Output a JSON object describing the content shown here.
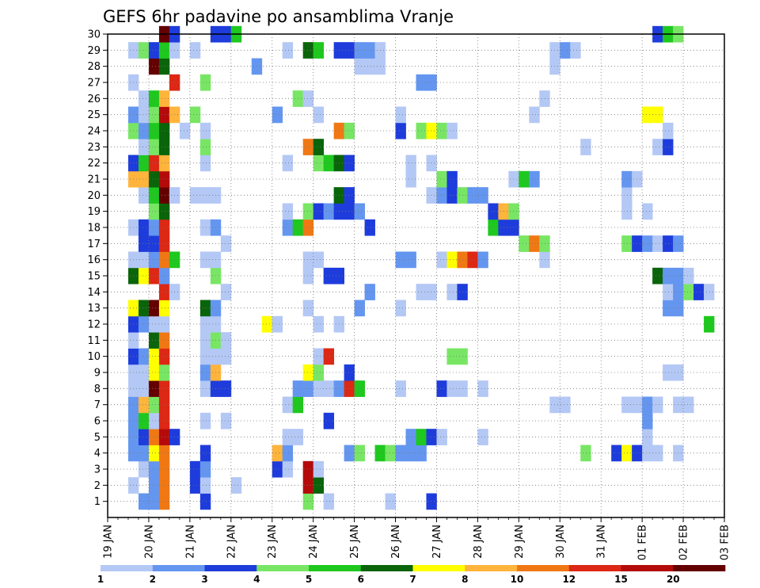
{
  "chart_data": {
    "type": "heatmap",
    "title": "GEFS 6hr padavine po ansamblima Vranje",
    "xlabel": "",
    "ylabel": "",
    "x_ticks": [
      "19 JAN",
      "20 JAN",
      "21 JAN",
      "22 JAN",
      "23 JAN",
      "24 JAN",
      "25 JAN",
      "26 JAN",
      "27 JAN",
      "28 JAN",
      "29 JAN",
      "30 JAN",
      "31 JAN",
      "01 FEB",
      "02 FEB",
      "03 FEB"
    ],
    "xlim": [
      "19 JAN 00Z",
      "03 FEB 00Z"
    ],
    "x_step_hours": 6,
    "y_ticks": [
      1,
      2,
      3,
      4,
      5,
      6,
      7,
      8,
      9,
      10,
      11,
      12,
      13,
      14,
      15,
      16,
      17,
      18,
      19,
      20,
      21,
      22,
      23,
      24,
      25,
      26,
      27,
      28,
      29,
      30
    ],
    "ylim": [
      0,
      30
    ],
    "grid": true,
    "colorbar": {
      "position": "bottom",
      "levels": [
        1,
        2,
        3,
        4,
        5,
        6,
        7,
        8,
        10,
        12,
        15,
        20
      ],
      "level_labels": [
        "1",
        "2",
        "3",
        "4",
        "5",
        "6",
        "7",
        "8",
        "10",
        "12",
        "15",
        "20"
      ],
      "colors": [
        "#b4c8f5",
        "#6496f0",
        "#1e3cdc",
        "#78e664",
        "#1ec81e",
        "#0a640a",
        "#ffff00",
        "#ffb43c",
        "#f07814",
        "#dc2814",
        "#b40a0a",
        "#640000"
      ]
    },
    "units": "mm",
    "cells_note": "rows: member -> list of [timestep_index, class_index]; timestep 0 = 19 JAN 00Z, 4 per day; class index k means value in [levels[k], levels[k+1])",
    "cells": {
      "30": [
        [
          5,
          11
        ],
        [
          6,
          2
        ],
        [
          10,
          2
        ],
        [
          11,
          2
        ],
        [
          12,
          4
        ],
        [
          53,
          2
        ],
        [
          54,
          4
        ],
        [
          55,
          3
        ]
      ],
      "29": [
        [
          2,
          0
        ],
        [
          3,
          3
        ],
        [
          4,
          2
        ],
        [
          5,
          4
        ],
        [
          6,
          0
        ],
        [
          8,
          0
        ],
        [
          17,
          0
        ],
        [
          19,
          5
        ],
        [
          20,
          4
        ],
        [
          22,
          2
        ],
        [
          23,
          2
        ],
        [
          24,
          1
        ],
        [
          25,
          1
        ],
        [
          26,
          0
        ],
        [
          43,
          0
        ],
        [
          44,
          1
        ],
        [
          45,
          0
        ]
      ],
      "28": [
        [
          4,
          11
        ],
        [
          5,
          5
        ],
        [
          14,
          1
        ],
        [
          24,
          0
        ],
        [
          25,
          0
        ],
        [
          26,
          0
        ],
        [
          43,
          0
        ]
      ],
      "27": [
        [
          2,
          0
        ],
        [
          6,
          9
        ],
        [
          9,
          3
        ],
        [
          30,
          1
        ],
        [
          31,
          1
        ]
      ],
      "26": [
        [
          3,
          0
        ],
        [
          4,
          4
        ],
        [
          5,
          7
        ],
        [
          18,
          3
        ],
        [
          19,
          0
        ],
        [
          42,
          0
        ]
      ],
      "25": [
        [
          2,
          1
        ],
        [
          3,
          0
        ],
        [
          4,
          3
        ],
        [
          5,
          10
        ],
        [
          6,
          7
        ],
        [
          8,
          3
        ],
        [
          16,
          1
        ],
        [
          20,
          0
        ],
        [
          28,
          0
        ],
        [
          41,
          0
        ],
        [
          52,
          6
        ],
        [
          53,
          6
        ]
      ],
      "24": [
        [
          2,
          3
        ],
        [
          3,
          1
        ],
        [
          4,
          4
        ],
        [
          5,
          5
        ],
        [
          7,
          0
        ],
        [
          9,
          0
        ],
        [
          22,
          8
        ],
        [
          23,
          3
        ],
        [
          28,
          2
        ],
        [
          30,
          3
        ],
        [
          31,
          6
        ],
        [
          32,
          3
        ],
        [
          33,
          0
        ],
        [
          54,
          0
        ]
      ],
      "23": [
        [
          3,
          0
        ],
        [
          4,
          3
        ],
        [
          5,
          5
        ],
        [
          9,
          3
        ],
        [
          19,
          8
        ],
        [
          20,
          5
        ],
        [
          46,
          0
        ],
        [
          53,
          0
        ],
        [
          54,
          2
        ]
      ],
      "22": [
        [
          2,
          2
        ],
        [
          3,
          4
        ],
        [
          4,
          9
        ],
        [
          5,
          7
        ],
        [
          9,
          0
        ],
        [
          17,
          0
        ],
        [
          20,
          3
        ],
        [
          21,
          4
        ],
        [
          22,
          5
        ],
        [
          23,
          2
        ],
        [
          29,
          0
        ],
        [
          31,
          0
        ]
      ],
      "21": [
        [
          2,
          7
        ],
        [
          3,
          7
        ],
        [
          4,
          5
        ],
        [
          5,
          10
        ],
        [
          29,
          0
        ],
        [
          32,
          3
        ],
        [
          33,
          2
        ],
        [
          39,
          0
        ],
        [
          40,
          4
        ],
        [
          41,
          1
        ],
        [
          50,
          1
        ],
        [
          51,
          0
        ]
      ],
      "20": [
        [
          3,
          0
        ],
        [
          4,
          4
        ],
        [
          5,
          11
        ],
        [
          6,
          0
        ],
        [
          8,
          0
        ],
        [
          9,
          0
        ],
        [
          10,
          0
        ],
        [
          22,
          5
        ],
        [
          23,
          2
        ],
        [
          31,
          0
        ],
        [
          32,
          1
        ],
        [
          33,
          2
        ],
        [
          34,
          3
        ],
        [
          35,
          1
        ],
        [
          36,
          1
        ],
        [
          50,
          0
        ]
      ],
      "19": [
        [
          4,
          3
        ],
        [
          5,
          5
        ],
        [
          17,
          0
        ],
        [
          19,
          3
        ],
        [
          20,
          2
        ],
        [
          21,
          1
        ],
        [
          22,
          2
        ],
        [
          23,
          2
        ],
        [
          24,
          1
        ],
        [
          37,
          2
        ],
        [
          38,
          7
        ],
        [
          39,
          3
        ],
        [
          50,
          0
        ],
        [
          52,
          0
        ]
      ],
      "18": [
        [
          2,
          0
        ],
        [
          3,
          2
        ],
        [
          4,
          1
        ],
        [
          5,
          9
        ],
        [
          9,
          0
        ],
        [
          10,
          1
        ],
        [
          17,
          1
        ],
        [
          18,
          4
        ],
        [
          19,
          8
        ],
        [
          25,
          2
        ],
        [
          37,
          4
        ],
        [
          38,
          2
        ],
        [
          39,
          2
        ]
      ],
      "17": [
        [
          3,
          2
        ],
        [
          4,
          2
        ],
        [
          5,
          9
        ],
        [
          11,
          0
        ],
        [
          40,
          3
        ],
        [
          41,
          8
        ],
        [
          42,
          3
        ],
        [
          50,
          3
        ],
        [
          51,
          2
        ],
        [
          52,
          1
        ],
        [
          53,
          0
        ],
        [
          54,
          2
        ],
        [
          55,
          1
        ]
      ],
      "16": [
        [
          2,
          0
        ],
        [
          3,
          0
        ],
        [
          4,
          1
        ],
        [
          5,
          8
        ],
        [
          6,
          4
        ],
        [
          9,
          0
        ],
        [
          10,
          0
        ],
        [
          19,
          0
        ],
        [
          20,
          0
        ],
        [
          28,
          1
        ],
        [
          29,
          1
        ],
        [
          32,
          0
        ],
        [
          33,
          6
        ],
        [
          34,
          8
        ],
        [
          35,
          9
        ],
        [
          36,
          1
        ],
        [
          42,
          0
        ]
      ],
      "15": [
        [
          2,
          5
        ],
        [
          3,
          6
        ],
        [
          4,
          9
        ],
        [
          5,
          1
        ],
        [
          10,
          3
        ],
        [
          19,
          0
        ],
        [
          21,
          2
        ],
        [
          22,
          2
        ],
        [
          53,
          5
        ],
        [
          54,
          1
        ],
        [
          55,
          1
        ],
        [
          56,
          0
        ]
      ],
      "14": [
        [
          5,
          9
        ],
        [
          6,
          0
        ],
        [
          11,
          0
        ],
        [
          25,
          1
        ],
        [
          30,
          0
        ],
        [
          31,
          0
        ],
        [
          33,
          0
        ],
        [
          34,
          2
        ],
        [
          54,
          0
        ],
        [
          55,
          1
        ],
        [
          56,
          3
        ],
        [
          57,
          2
        ],
        [
          58,
          0
        ]
      ],
      "13": [
        [
          2,
          6
        ],
        [
          3,
          5
        ],
        [
          4,
          11
        ],
        [
          5,
          6
        ],
        [
          9,
          5
        ],
        [
          10,
          1
        ],
        [
          19,
          0
        ],
        [
          24,
          1
        ],
        [
          28,
          0
        ],
        [
          54,
          1
        ],
        [
          55,
          1
        ]
      ],
      "12": [
        [
          2,
          2
        ],
        [
          3,
          1
        ],
        [
          4,
          0
        ],
        [
          5,
          0
        ],
        [
          9,
          0
        ],
        [
          10,
          0
        ],
        [
          15,
          6
        ],
        [
          16,
          0
        ],
        [
          20,
          0
        ],
        [
          22,
          0
        ],
        [
          58,
          4
        ]
      ],
      "11": [
        [
          2,
          0
        ],
        [
          4,
          5
        ],
        [
          5,
          8
        ],
        [
          9,
          0
        ],
        [
          10,
          3
        ],
        [
          11,
          0
        ]
      ],
      "10": [
        [
          2,
          2
        ],
        [
          3,
          1
        ],
        [
          4,
          6
        ],
        [
          5,
          9
        ],
        [
          9,
          0
        ],
        [
          10,
          0
        ],
        [
          11,
          0
        ],
        [
          20,
          0
        ],
        [
          21,
          9
        ],
        [
          33,
          3
        ],
        [
          34,
          3
        ]
      ],
      "9": [
        [
          2,
          0
        ],
        [
          3,
          0
        ],
        [
          4,
          6
        ],
        [
          5,
          3
        ],
        [
          9,
          1
        ],
        [
          10,
          7
        ],
        [
          19,
          6
        ],
        [
          20,
          3
        ],
        [
          23,
          2
        ],
        [
          54,
          0
        ],
        [
          55,
          0
        ]
      ],
      "8": [
        [
          2,
          0
        ],
        [
          3,
          0
        ],
        [
          4,
          11
        ],
        [
          5,
          9
        ],
        [
          9,
          0
        ],
        [
          10,
          2
        ],
        [
          11,
          2
        ],
        [
          18,
          1
        ],
        [
          19,
          1
        ],
        [
          20,
          0
        ],
        [
          21,
          0
        ],
        [
          22,
          1
        ],
        [
          23,
          9
        ],
        [
          24,
          4
        ],
        [
          28,
          0
        ],
        [
          32,
          2
        ],
        [
          33,
          0
        ],
        [
          34,
          0
        ],
        [
          36,
          0
        ]
      ],
      "7": [
        [
          2,
          1
        ],
        [
          3,
          7
        ],
        [
          4,
          3
        ],
        [
          5,
          9
        ],
        [
          17,
          0
        ],
        [
          18,
          4
        ],
        [
          43,
          0
        ],
        [
          44,
          0
        ],
        [
          50,
          0
        ],
        [
          51,
          0
        ],
        [
          52,
          1
        ],
        [
          53,
          0
        ],
        [
          55,
          0
        ],
        [
          56,
          0
        ]
      ],
      "6": [
        [
          2,
          1
        ],
        [
          3,
          4
        ],
        [
          4,
          0
        ],
        [
          5,
          9
        ],
        [
          9,
          0
        ],
        [
          11,
          0
        ],
        [
          21,
          2
        ],
        [
          52,
          1
        ]
      ],
      "5": [
        [
          2,
          1
        ],
        [
          3,
          2
        ],
        [
          4,
          8
        ],
        [
          5,
          10
        ],
        [
          6,
          2
        ],
        [
          17,
          0
        ],
        [
          18,
          0
        ],
        [
          29,
          1
        ],
        [
          30,
          4
        ],
        [
          31,
          2
        ],
        [
          32,
          0
        ],
        [
          36,
          0
        ],
        [
          52,
          0
        ]
      ],
      "4": [
        [
          2,
          1
        ],
        [
          3,
          1
        ],
        [
          4,
          6
        ],
        [
          5,
          8
        ],
        [
          9,
          2
        ],
        [
          16,
          7
        ],
        [
          17,
          1
        ],
        [
          23,
          1
        ],
        [
          24,
          3
        ],
        [
          26,
          4
        ],
        [
          27,
          3
        ],
        [
          28,
          1
        ],
        [
          29,
          1
        ],
        [
          30,
          1
        ],
        [
          46,
          3
        ],
        [
          49,
          2
        ],
        [
          50,
          6
        ],
        [
          51,
          2
        ],
        [
          52,
          0
        ],
        [
          53,
          0
        ],
        [
          55,
          0
        ]
      ],
      "3": [
        [
          3,
          0
        ],
        [
          4,
          1
        ],
        [
          5,
          8
        ],
        [
          8,
          2
        ],
        [
          9,
          1
        ],
        [
          16,
          2
        ],
        [
          17,
          0
        ],
        [
          19,
          10
        ],
        [
          20,
          0
        ]
      ],
      "2": [
        [
          2,
          0
        ],
        [
          4,
          1
        ],
        [
          5,
          8
        ],
        [
          8,
          2
        ],
        [
          9,
          0
        ],
        [
          12,
          0
        ],
        [
          19,
          10
        ],
        [
          20,
          5
        ]
      ],
      "1": [
        [
          3,
          1
        ],
        [
          4,
          1
        ],
        [
          5,
          8
        ],
        [
          9,
          2
        ],
        [
          19,
          3
        ],
        [
          21,
          0
        ],
        [
          27,
          0
        ],
        [
          31,
          2
        ]
      ]
    }
  }
}
